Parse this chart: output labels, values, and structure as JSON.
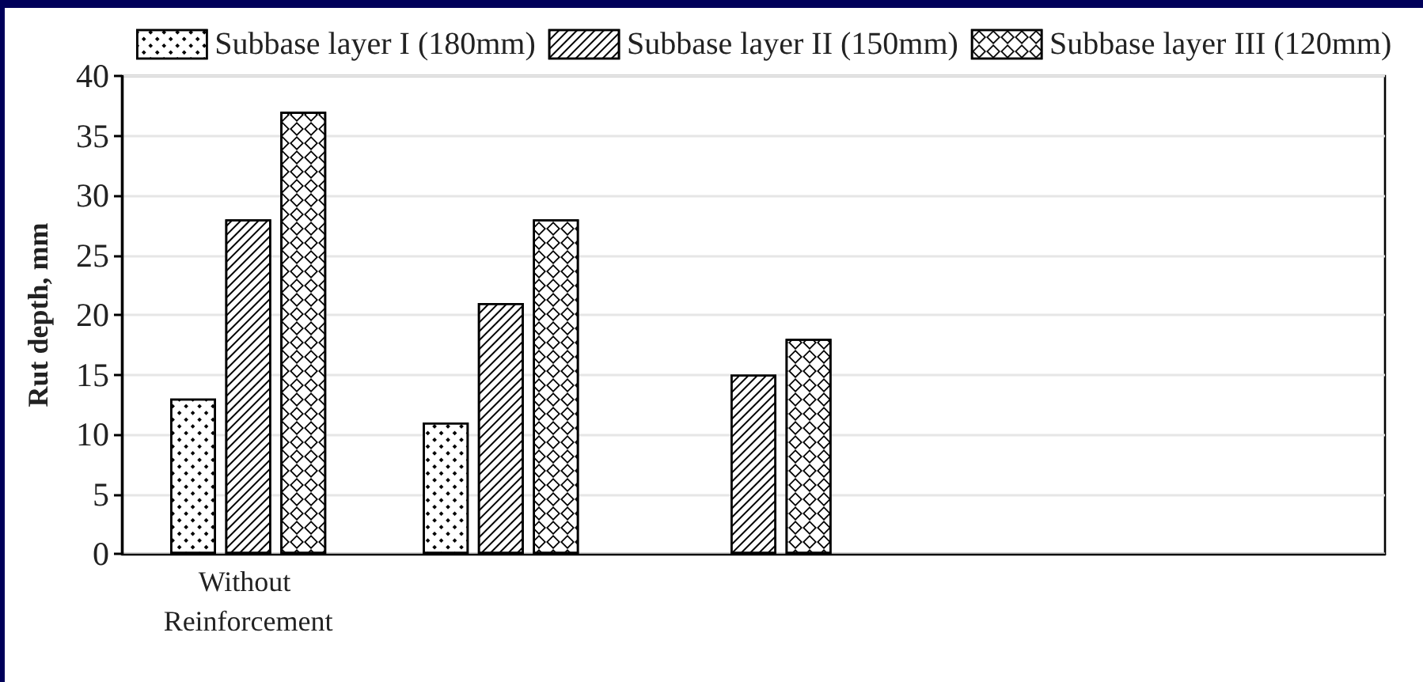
{
  "chart_data": {
    "type": "bar",
    "categories": [
      "Without Reinforcement",
      null,
      null,
      null,
      null
    ],
    "series": [
      {
        "name": "Subbase layer I (180mm)",
        "color": "#ffffff",
        "values": [
          13,
          11,
          null,
          null,
          null
        ]
      },
      {
        "name": "Subbase layer II (150mm)",
        "color": "#ffffff",
        "values": [
          28,
          21,
          15,
          null,
          null
        ]
      },
      {
        "name": "Subbase layer III (120mm)",
        "color": "#ffffff",
        "values": [
          37,
          28,
          18,
          null,
          null
        ]
      }
    ],
    "ylabel": "Rut depth, mm",
    "ylim": [
      0,
      40
    ],
    "yticks": [
      0,
      5,
      10,
      15,
      20,
      25,
      30,
      35,
      40
    ],
    "grid": "y",
    "legend": "top"
  }
}
